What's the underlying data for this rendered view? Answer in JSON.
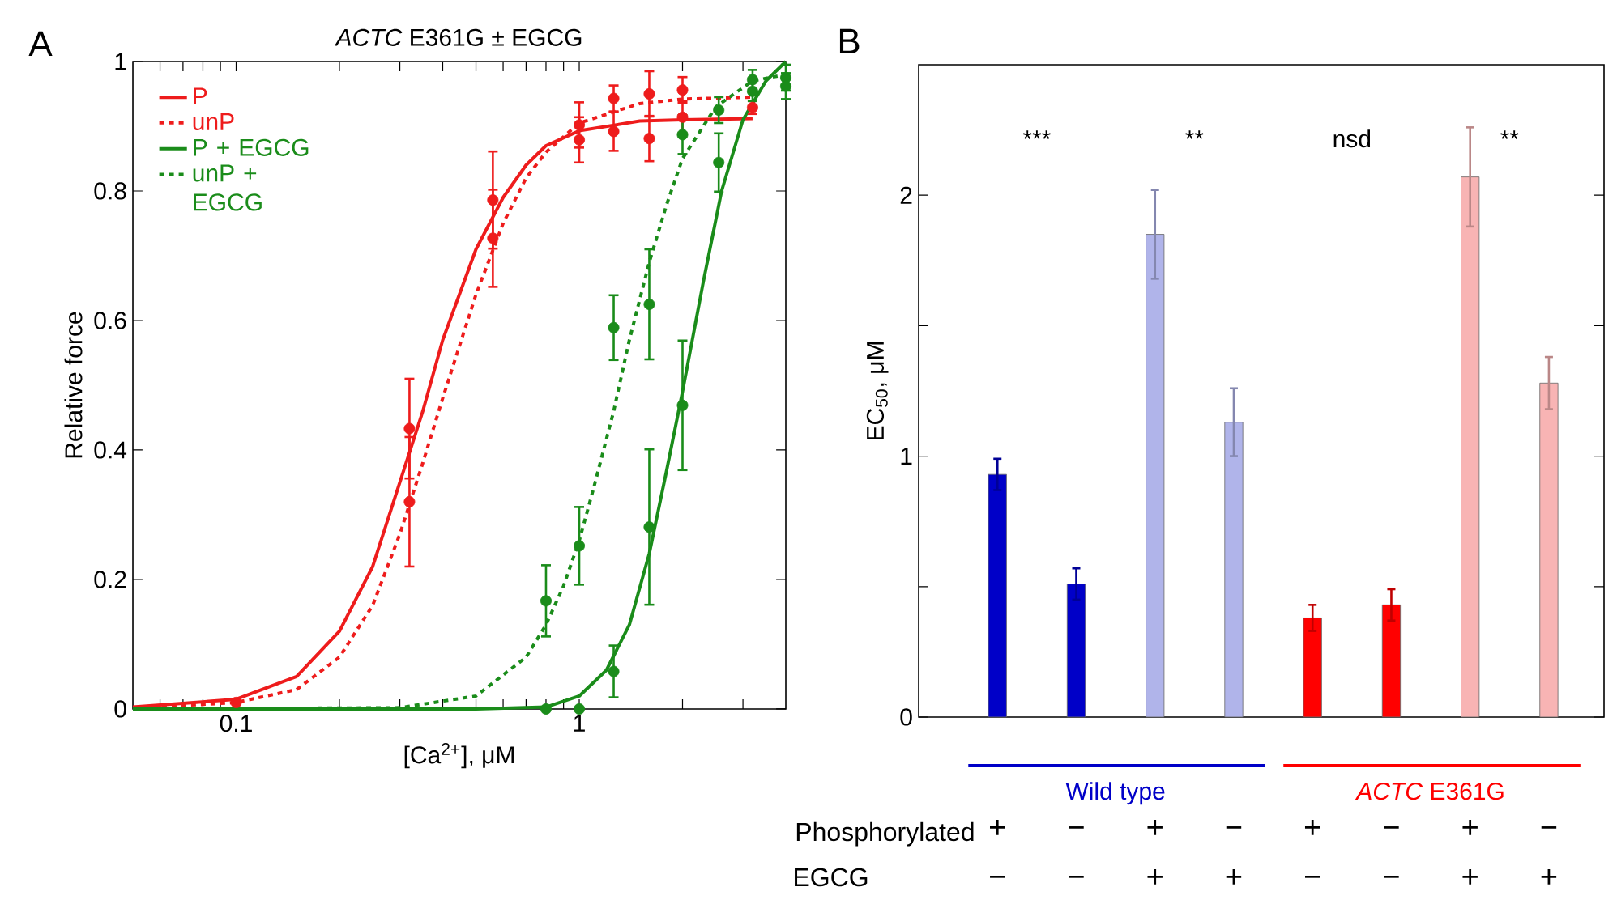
{
  "chart_data": [
    {
      "type": "scatter",
      "title": "*ACTC* E361G ± EGCG",
      "xlabel": "[Ca$^{2+}$], μM",
      "ylabel": "Relative force",
      "log": "x",
      "xlim": [
        0.05,
        4
      ],
      "ylim": [
        0,
        1
      ],
      "xticks": [
        {
          "value": 0.06,
          "label": null
        },
        {
          "value": 0.07,
          "label": null
        },
        {
          "value": 0.08,
          "label": null
        },
        {
          "value": 0.09,
          "label": null
        },
        0.1,
        {
          "value": 0.2,
          "label": null
        },
        {
          "value": 0.3,
          "label": null
        },
        {
          "value": 0.4,
          "label": null
        },
        {
          "value": 0.5,
          "label": null
        },
        {
          "value": 0.6,
          "label": null
        },
        {
          "value": 0.7,
          "label": null
        },
        {
          "value": 0.8,
          "label": null
        },
        {
          "value": 0.9,
          "label": null
        },
        1,
        {
          "value": 2,
          "label": null
        },
        {
          "value": 3,
          "label": null
        }
      ],
      "yticks": [
        0,
        0.2,
        0.4,
        0.6,
        0.8,
        1
      ],
      "legend": "top left",
      "annotations": [
        "A"
      ],
      "series": [
        {
          "name": "P",
          "type": "line",
          "color": "#ee1c1c",
          "line_style": "solid",
          "marker": "none",
          "x": [
            0.05,
            0.1,
            0.15,
            0.2,
            0.25,
            0.3,
            0.35,
            0.4,
            0.5,
            0.6,
            0.7,
            0.8,
            1,
            1.5,
            2,
            3.2
          ],
          "values": [
            0.003,
            0.015,
            0.05,
            0.12,
            0.22,
            0.35,
            0.46,
            0.57,
            0.71,
            0.79,
            0.84,
            0.87,
            0.893,
            0.908,
            0.91,
            0.912
          ]
        },
        {
          "name": "unP",
          "type": "line",
          "color": "#ee1c1c",
          "line_style": "dashed",
          "marker": "none",
          "x": [
            0.05,
            0.1,
            0.15,
            0.2,
            0.25,
            0.3,
            0.35,
            0.4,
            0.5,
            0.6,
            0.7,
            0.8,
            1,
            1.5,
            2,
            3.2
          ],
          "values": [
            0.001,
            0.01,
            0.03,
            0.08,
            0.16,
            0.27,
            0.38,
            0.48,
            0.64,
            0.75,
            0.82,
            0.86,
            0.905,
            0.935,
            0.942,
            0.945
          ]
        },
        {
          "name": "P + EGCG",
          "type": "line",
          "color": "#1a8c1a",
          "line_style": "solid",
          "marker": "none",
          "x": [
            0.05,
            0.5,
            0.8,
            1,
            1.2,
            1.4,
            1.6,
            1.8,
            2,
            2.3,
            2.6,
            3,
            3.5,
            4
          ],
          "values": [
            0,
            0,
            0.003,
            0.02,
            0.06,
            0.13,
            0.24,
            0.37,
            0.49,
            0.66,
            0.8,
            0.91,
            0.97,
            1
          ]
        },
        {
          "name": "unP + EGCG",
          "type": "line",
          "color": "#1a8c1a",
          "line_style": "dashed",
          "marker": "none",
          "x": [
            0.05,
            0.3,
            0.5,
            0.7,
            0.8,
            0.9,
            1,
            1.1,
            1.26,
            1.4,
            1.6,
            1.8,
            2,
            2.5,
            3.2,
            4
          ],
          "values": [
            0,
            0.002,
            0.02,
            0.08,
            0.13,
            0.19,
            0.26,
            0.34,
            0.46,
            0.57,
            0.69,
            0.78,
            0.85,
            0.93,
            0.97,
            0.98
          ]
        },
        {
          "type": "scatter",
          "color": "#ee1c1c",
          "marker": "circle",
          "x": [
            0.1,
            0.32,
            0.56,
            1,
            1.26,
            1.6,
            2,
            3.2
          ],
          "values": [
            0.01,
            0.32,
            0.727,
            0.879,
            0.943,
            0.95,
            0.956,
            0.929
          ],
          "errors": [
            null,
            0.1,
            0.075,
            0.035,
            0.02,
            0.035,
            0.02,
            0.01
          ]
        },
        {
          "type": "scatter",
          "color": "#ee1c1c",
          "marker": "circle",
          "x": [
            0.32,
            0.56,
            1,
            1.26,
            1.6,
            2
          ],
          "values": [
            0.433,
            0.786,
            0.902,
            0.892,
            0.881,
            0.914
          ],
          "errors": [
            0.077,
            0.075,
            0.035,
            0.03,
            0.035,
            0.025
          ]
        },
        {
          "type": "scatter",
          "color": "#1a8c1a",
          "marker": "circle",
          "x": [
            0.8,
            1,
            1.26,
            1.6,
            2,
            2.55,
            3.2,
            4
          ],
          "values": [
            0,
            0,
            0.058,
            0.281,
            0.469,
            0.844,
            0.972,
            0.975
          ],
          "errors": [
            null,
            null,
            0.04,
            0.12,
            0.1,
            0.045,
            0.015,
            0.02
          ]
        },
        {
          "type": "scatter",
          "color": "#1a8c1a",
          "marker": "circle",
          "x": [
            0.8,
            1,
            1.26,
            1.6,
            2,
            2.55,
            3.2,
            4
          ],
          "values": [
            0.167,
            0.252,
            0.589,
            0.625,
            0.887,
            0.925,
            0.954,
            0.962
          ],
          "errors": [
            0.055,
            0.06,
            0.05,
            0.085,
            0.03,
            0.02,
            0.015,
            0.02
          ]
        }
      ]
    },
    {
      "type": "bar",
      "ylabel": "EC$_{50}$, μM",
      "categories": [
        "+",
        "−",
        "+",
        "−",
        "+",
        "−",
        "+",
        "−"
      ],
      "values": [
        0.93,
        0.51,
        1.85,
        1.13,
        0.38,
        0.43,
        2.07,
        1.28
      ],
      "errors": [
        0.06,
        0.06,
        0.17,
        0.13,
        0.05,
        0.06,
        0.19,
        0.1
      ],
      "colors": [
        "#0000c8",
        "#0000c8",
        "#b0b4ea",
        "#b0b4ea",
        "#ff0000",
        "#ff0000",
        "#f8b4b4",
        "#f8b4b4"
      ],
      "ylim": [
        0,
        2.5
      ],
      "yticks": [
        0,
        {
          "value": 0.5,
          "label": null
        },
        1,
        {
          "value": 1.5,
          "label": null
        },
        2
      ],
      "annotations": [
        "Phosphorylated",
        "EGCG",
        "−",
        "−",
        "+",
        "+",
        "−",
        "−",
        "+",
        "+",
        "Wild type",
        "*ACTC* E361G",
        "***",
        "**",
        "nsd",
        "**",
        "B"
      ]
    }
  ]
}
